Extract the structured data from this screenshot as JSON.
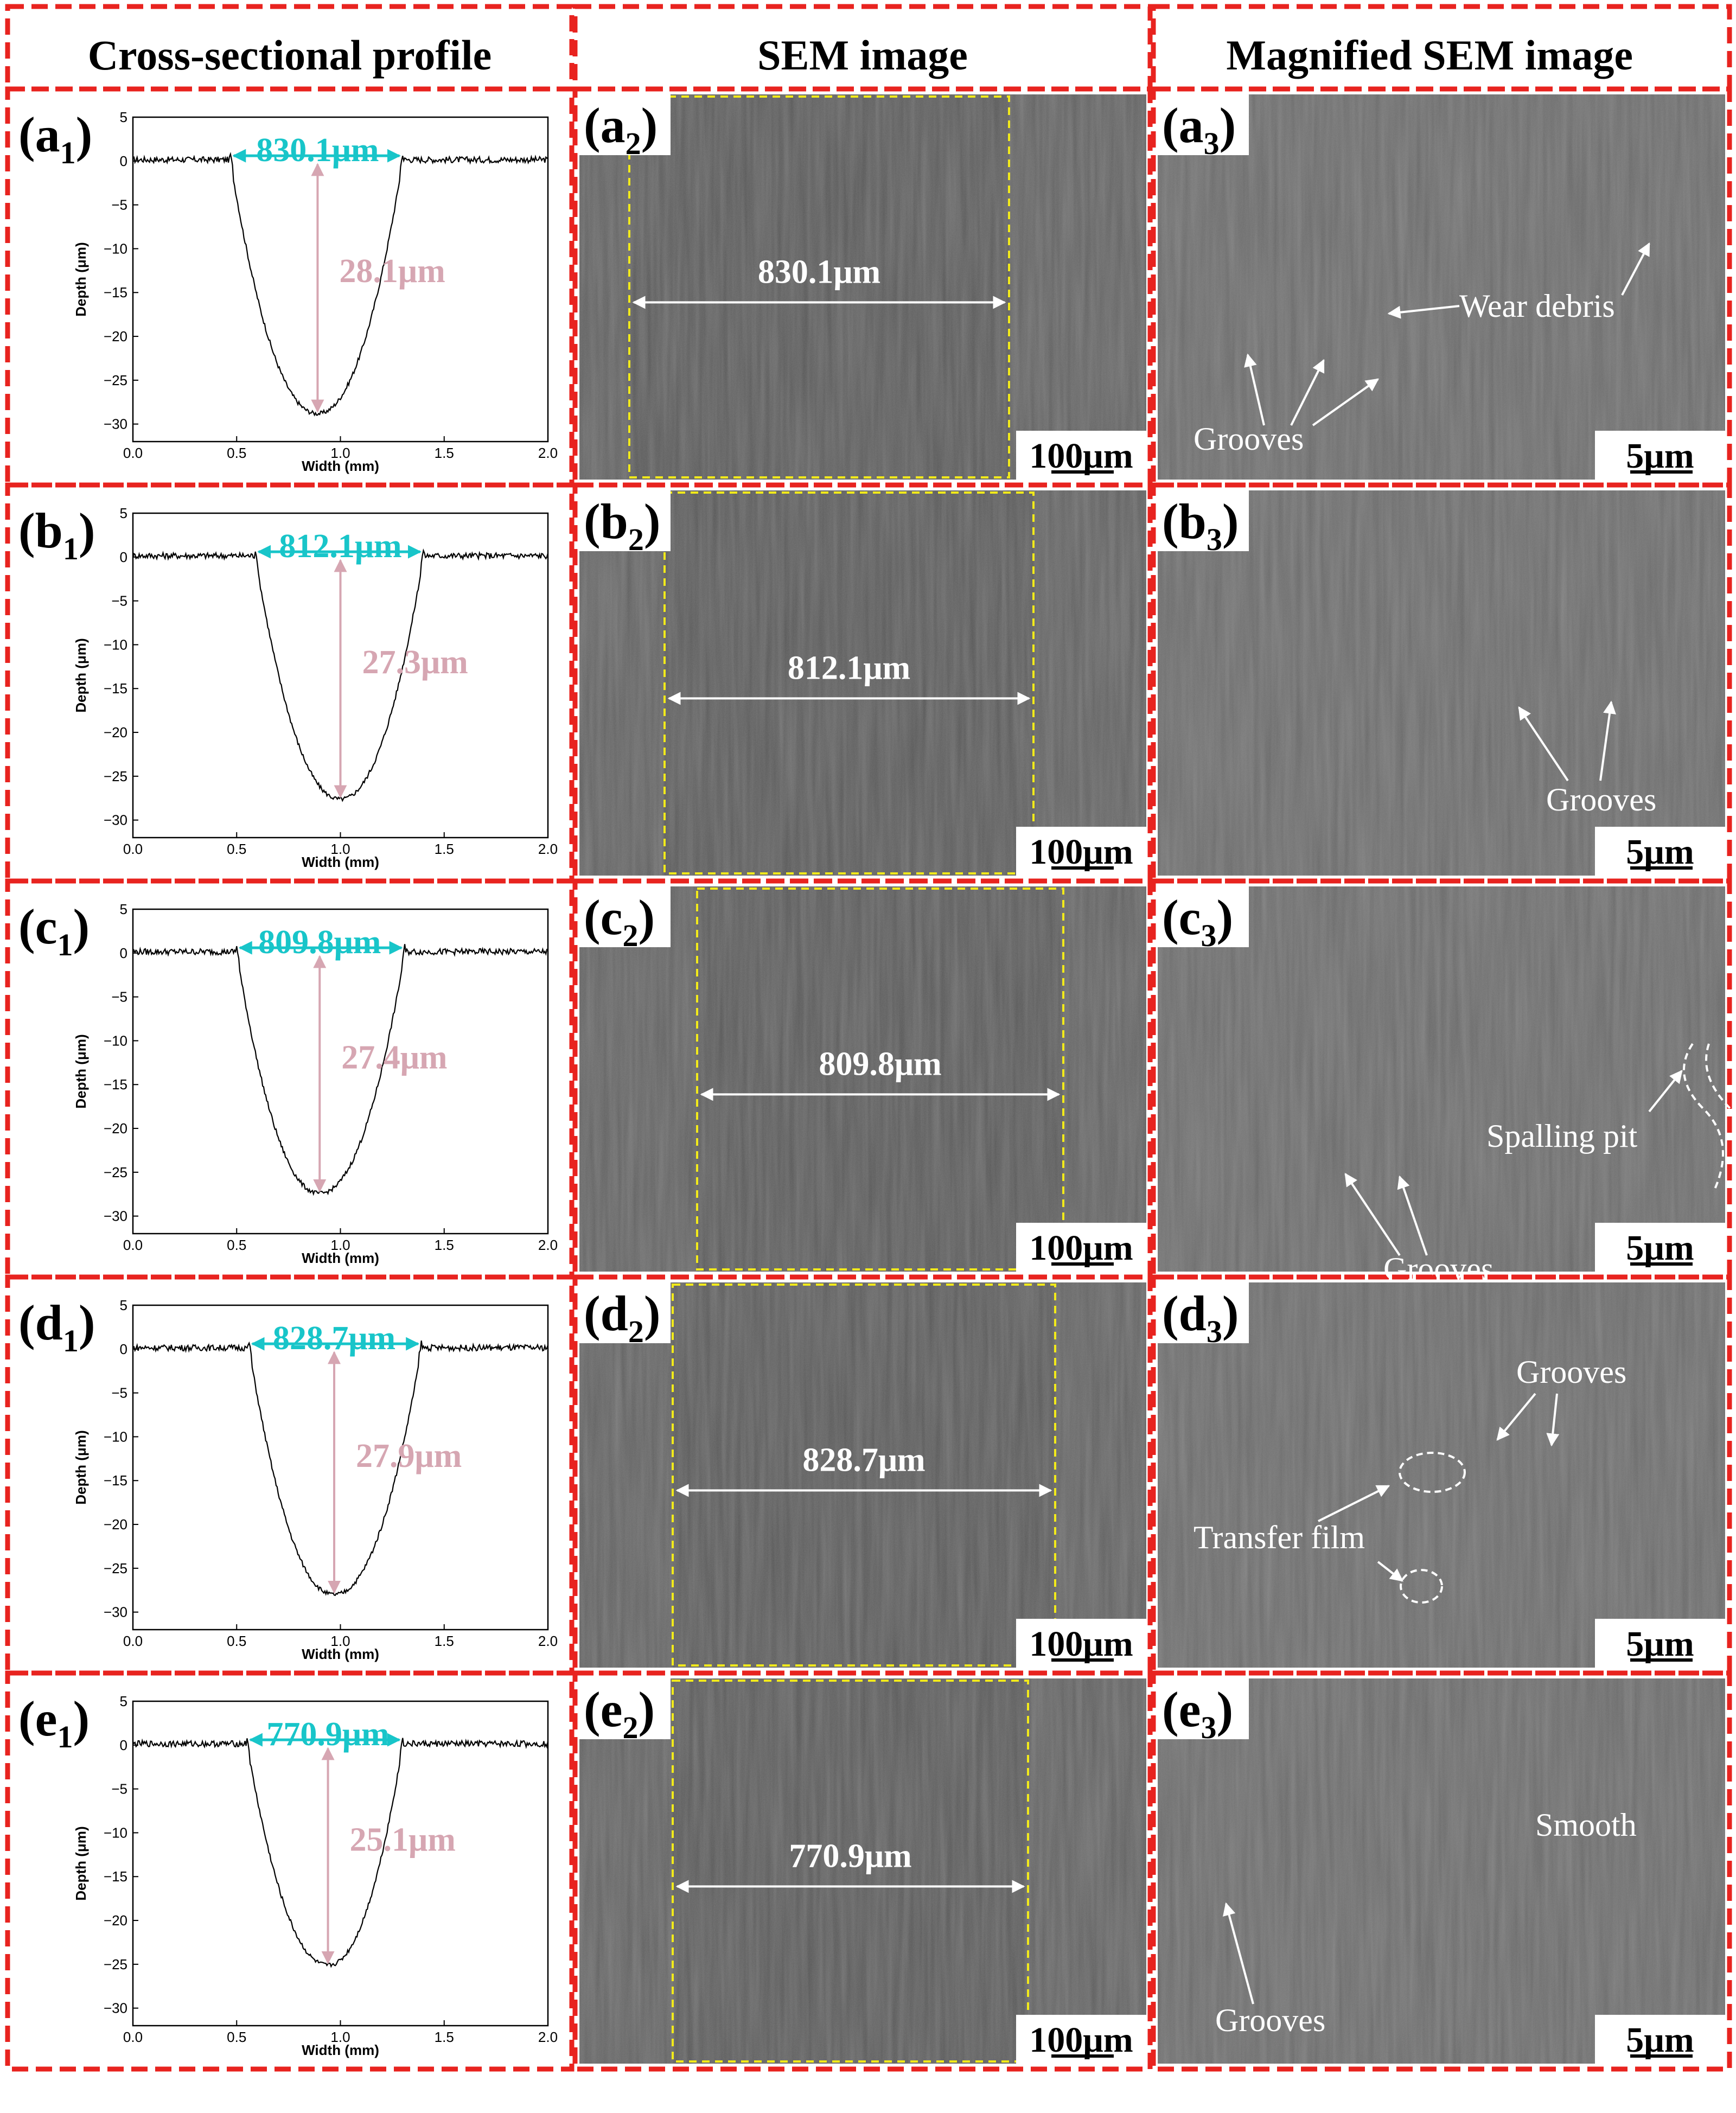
{
  "headers": [
    "Cross-sectional profile",
    "SEM image",
    "Magnified SEM image"
  ],
  "scale_bars": {
    "sem": "100μm",
    "magnified": "5μm"
  },
  "chart_axes": {
    "xlabel": "Width (mm)",
    "ylabel": "Depth (μm)",
    "xlim": [
      0,
      2.0
    ],
    "ylim": [
      -32,
      5
    ],
    "xticks": [
      "0.0",
      "0.5",
      "1.0",
      "1.5",
      "2.0"
    ],
    "yticks": [
      "5",
      "0",
      "-5",
      "-10",
      "-15",
      "-20",
      "-25",
      "-30"
    ]
  },
  "rows": [
    {
      "id": "a",
      "labels": [
        "a",
        "1",
        "a",
        "2",
        "a",
        "3"
      ],
      "width_label": "830.1μm",
      "depth_label": "28.1μm",
      "sem_width_label": "830.1μm",
      "annotations": [
        "Wear debris",
        "Grooves"
      ]
    },
    {
      "id": "b",
      "labels": [
        "b",
        "1",
        "b",
        "2",
        "b",
        "3"
      ],
      "width_label": "812.1μm",
      "depth_label": "27.3μm",
      "sem_width_label": "812.1μm",
      "annotations": [
        "Grooves"
      ]
    },
    {
      "id": "c",
      "labels": [
        "c",
        "1",
        "c",
        "2",
        "c",
        "3"
      ],
      "width_label": "809.8μm",
      "depth_label": "27.4μm",
      "sem_width_label": "809.8μm",
      "annotations": [
        "Spalling pit",
        "Grooves"
      ]
    },
    {
      "id": "d",
      "labels": [
        "d",
        "1",
        "d",
        "2",
        "d",
        "3"
      ],
      "width_label": "828.7μm",
      "depth_label": "27.9μm",
      "sem_width_label": "828.7μm",
      "annotations": [
        "Grooves",
        "Transfer  film"
      ]
    },
    {
      "id": "e",
      "labels": [
        "e",
        "1",
        "e",
        "2",
        "e",
        "3"
      ],
      "width_label": "770.9μm",
      "depth_label": "25.1μm",
      "sem_width_label": "770.9μm",
      "annotations": [
        "Smooth",
        "Grooves"
      ]
    }
  ],
  "chart_data": [
    {
      "type": "line",
      "title": "(a1)",
      "xlabel": "Width (mm)",
      "ylabel": "Depth (μm)",
      "xlim": [
        0,
        2.0
      ],
      "ylim": [
        -32,
        5
      ],
      "track": {
        "left_mm": 0.47,
        "right_mm": 1.3,
        "center_mm": 0.89,
        "max_depth_um": 28.8
      },
      "annotations": [
        "830.1μm",
        "28.1μm"
      ]
    },
    {
      "type": "line",
      "title": "(b1)",
      "xlabel": "Width (mm)",
      "ylabel": "Depth (μm)",
      "xlim": [
        0,
        2.0
      ],
      "ylim": [
        -32,
        5
      ],
      "track": {
        "left_mm": 0.59,
        "right_mm": 1.4,
        "center_mm": 1.0,
        "max_depth_um": 27.6
      },
      "annotations": [
        "812.1μm",
        "27.3μm"
      ]
    },
    {
      "type": "line",
      "title": "(c1)",
      "xlabel": "Width (mm)",
      "ylabel": "Depth (μm)",
      "xlim": [
        0,
        2.0
      ],
      "ylim": [
        -32,
        5
      ],
      "track": {
        "left_mm": 0.5,
        "right_mm": 1.31,
        "center_mm": 0.9,
        "max_depth_um": 27.4
      },
      "annotations": [
        "809.8μm",
        "27.4μm"
      ]
    },
    {
      "type": "line",
      "title": "(d1)",
      "xlabel": "Width (mm)",
      "ylabel": "Depth (μm)",
      "xlim": [
        0,
        2.0
      ],
      "ylim": [
        -32,
        5
      ],
      "track": {
        "left_mm": 0.56,
        "right_mm": 1.39,
        "center_mm": 0.97,
        "max_depth_um": 28.0
      },
      "annotations": [
        "828.7μm",
        "27.9μm"
      ]
    },
    {
      "type": "line",
      "title": "(e1)",
      "xlabel": "Width (mm)",
      "ylabel": "Depth (μm)",
      "xlim": [
        0,
        2.0
      ],
      "ylim": [
        -32,
        5
      ],
      "track": {
        "left_mm": 0.55,
        "right_mm": 1.3,
        "center_mm": 0.94,
        "max_depth_um": 25.1
      },
      "annotations": [
        "770.9μm",
        "25.1μm"
      ]
    }
  ]
}
